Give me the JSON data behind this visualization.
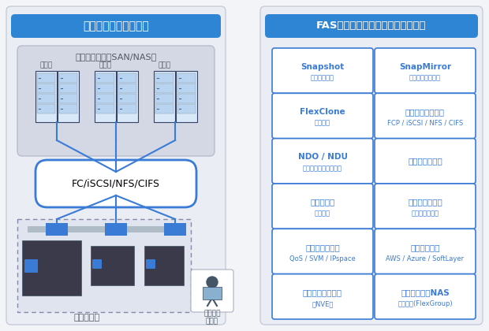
{
  "title_left": "マルチプロトコル対応",
  "title_right": "FASの様々なデータ管理機能を搭載",
  "title_bg_top": "#5aabf0",
  "title_bg_bot": "#1a6abf",
  "panel_bg": "#e8ecf2",
  "panel_border": "#c8ccd8",
  "unified_bg": "#d0d4de",
  "unified_text": "ユニファイド（SAN/NAS）",
  "server_label": "サーバ",
  "protocol_label": "FC/iSCSI/NFS/CIFS",
  "cluster_label": "クラスター",
  "admin_label": "クラスタ\n管理者",
  "blue": "#3a7bd5",
  "blue_dark": "#1a5baa",
  "blue_light": "#b8d4f8",
  "gray_storage": "#555566",
  "white": "#ffffff",
  "features": [
    [
      "Snapshot\nバックアップ",
      "SnapMirror\nレプリケーション"
    ],
    [
      "FlexClone\nクローン",
      "マルチプロトコル\nFCP / iSCSI / NFS / CIFS"
    ],
    [
      "NDO / NDU\n無停止オペレーション",
      "インライン圧縮"
    ],
    [
      "インライン\n重複排除",
      "スケールアウト\nスケールアップ"
    ],
    [
      "マルチテナント\nQoS / SVM / IPspace",
      "クラウド連携\nAWS / Azure / SoftLayer"
    ],
    [
      "ボリューム暗号化\n（NVE）",
      "スケーラブルNAS\nコンテナ(FlexGroup)"
    ]
  ],
  "fig_w": 6.2,
  "fig_h": 4.2,
  "dpi": 100
}
